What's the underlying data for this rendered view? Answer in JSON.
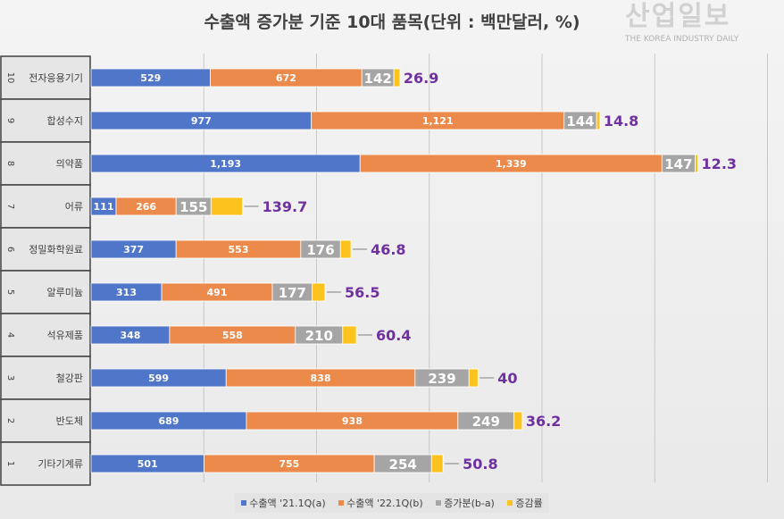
{
  "chart_data": {
    "type": "bar",
    "orientation": "horizontal-stacked",
    "title": "수출액 증가분 기준 10대 품목(단위 : 백만달러, %)",
    "categories": [
      {
        "rank": "10",
        "name": "전자응용기기"
      },
      {
        "rank": "9",
        "name": "합성수지"
      },
      {
        "rank": "8",
        "name": "의약품"
      },
      {
        "rank": "7",
        "name": "어류"
      },
      {
        "rank": "6",
        "name": "정밀화학원료"
      },
      {
        "rank": "5",
        "name": "알루미늄"
      },
      {
        "rank": "4",
        "name": "석유제품"
      },
      {
        "rank": "3",
        "name": "철강판"
      },
      {
        "rank": "2",
        "name": "반도체"
      },
      {
        "rank": "1",
        "name": "기타기계류"
      }
    ],
    "series": [
      {
        "name": "수출액 '21.1Q(a)",
        "color": "#4f76c8",
        "values": [
          529,
          977,
          1193,
          111,
          377,
          313,
          348,
          599,
          689,
          501
        ],
        "labels": [
          "529",
          "977",
          "1,193",
          "111",
          "377",
          "313",
          "348",
          "599",
          "689",
          "501"
        ]
      },
      {
        "name": "수출액 '22.1Q(b)",
        "color": "#ec8a4b",
        "values": [
          672,
          1121,
          1339,
          266,
          553,
          491,
          558,
          838,
          938,
          755
        ],
        "labels": [
          "672",
          "1,121",
          "1,339",
          "266",
          "553",
          "491",
          "558",
          "838",
          "938",
          "755"
        ]
      },
      {
        "name": "증가분(b-a)",
        "color": "#a5a5a5",
        "values": [
          142,
          144,
          147,
          155,
          176,
          177,
          210,
          239,
          249,
          254
        ],
        "labels": [
          "142",
          "144",
          "147",
          "155",
          "176",
          "177",
          "210",
          "239",
          "249",
          "254"
        ]
      },
      {
        "name": "증감률",
        "color": "#fcc31e",
        "values": [
          26.9,
          14.8,
          12.3,
          139.7,
          46.8,
          56.5,
          60.4,
          40,
          36.2,
          50.8
        ],
        "labels": [
          "26.9",
          "14.8",
          "12.3",
          "139.7",
          "46.8",
          "56.5",
          "60.4",
          "40",
          "36.2",
          "50.8"
        ]
      }
    ],
    "rate_label_color": "#7030a0",
    "grid": true,
    "legend": "bottom"
  },
  "watermark": {
    "text": "산업일보",
    "subtext": "THE KOREA INDUSTRY DAILY"
  }
}
